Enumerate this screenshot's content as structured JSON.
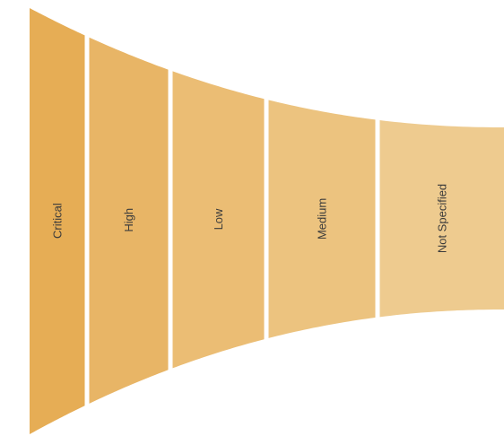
{
  "chart_data": {
    "type": "funnel",
    "orientation": "horizontal",
    "title": "",
    "categories": [
      "Critical",
      "High",
      "Low",
      "Medium",
      "Not Specified"
    ],
    "series": [
      {
        "colors": [
          "#e6ad55",
          "#e8b566",
          "#ebbd74",
          "#ecc37f",
          "#eecb8f"
        ]
      }
    ],
    "legend": "none",
    "grid": false
  }
}
